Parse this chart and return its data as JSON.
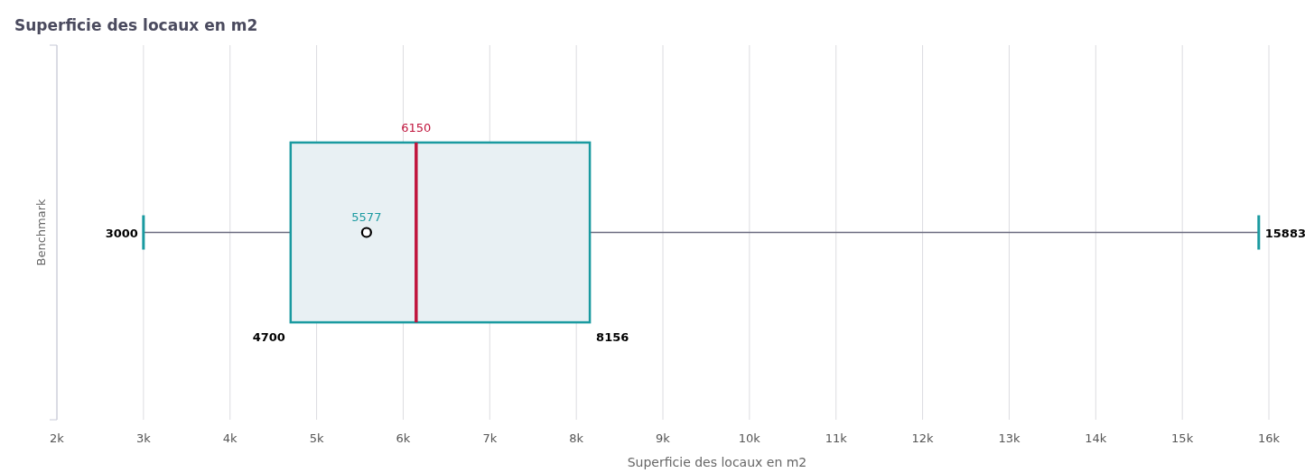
{
  "chart_data": {
    "type": "box",
    "title": "Superficie des locaux en m2",
    "xlabel": "Superficie des locaux en m2",
    "orientation": "horizontal",
    "categories": [
      "Benchmark"
    ],
    "boxes": [
      {
        "low": 3000,
        "q1": 4700,
        "median": 6150,
        "q3": 8156,
        "high": 15883,
        "mean": 5577
      }
    ],
    "color": "#1a9aa0",
    "grid": "x",
    "annotations": [
      "3000",
      "4700",
      "5577",
      "6150",
      "8156",
      "15883"
    ],
    "xlim": [
      2000,
      16000
    ],
    "xticks": [
      {
        "value": 2000,
        "label": "2k"
      },
      {
        "value": 3000,
        "label": "3k"
      },
      {
        "value": 4000,
        "label": "4k"
      },
      {
        "value": 5000,
        "label": "5k"
      },
      {
        "value": 6000,
        "label": "6k"
      },
      {
        "value": 7000,
        "label": "7k"
      },
      {
        "value": 8000,
        "label": "8k"
      },
      {
        "value": 9000,
        "label": "9k"
      },
      {
        "value": 10000,
        "label": "10k"
      },
      {
        "value": 11000,
        "label": "11k"
      },
      {
        "value": 12000,
        "label": "12k"
      },
      {
        "value": 13000,
        "label": "13k"
      },
      {
        "value": 14000,
        "label": "14k"
      },
      {
        "value": 15000,
        "label": "15k"
      },
      {
        "value": 16000,
        "label": "16k"
      }
    ]
  }
}
